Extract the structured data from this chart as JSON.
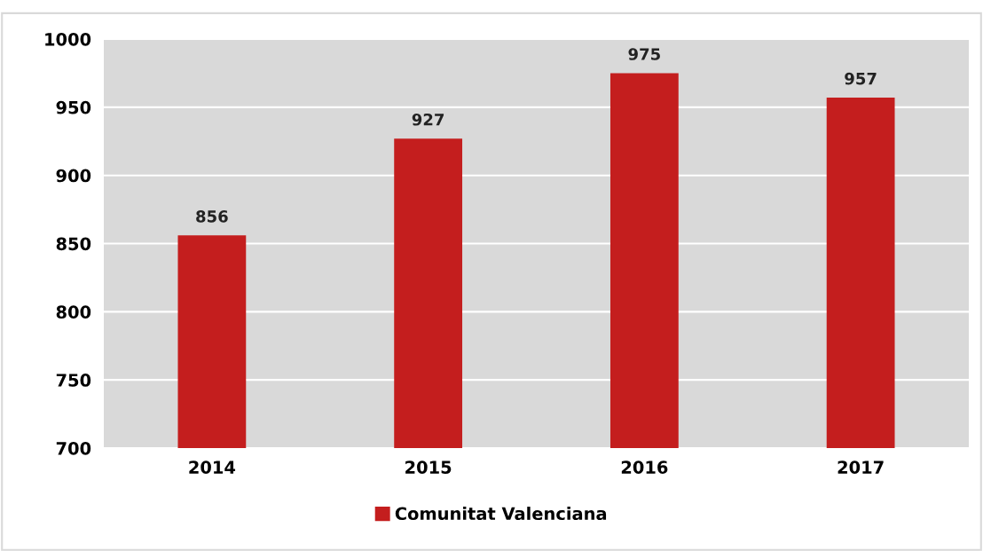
{
  "chart_data": {
    "type": "bar",
    "categories": [
      "2014",
      "2015",
      "2016",
      "2017"
    ],
    "series": [
      {
        "name": "Comunitat Valenciana",
        "color": "#c41e1e",
        "values": [
          856,
          927,
          975,
          957
        ]
      }
    ],
    "ylim": [
      700,
      1000
    ],
    "yticks": [
      700,
      750,
      800,
      850,
      900,
      950,
      1000
    ],
    "grid": "y",
    "data_labels": true,
    "legend": "bottom"
  }
}
